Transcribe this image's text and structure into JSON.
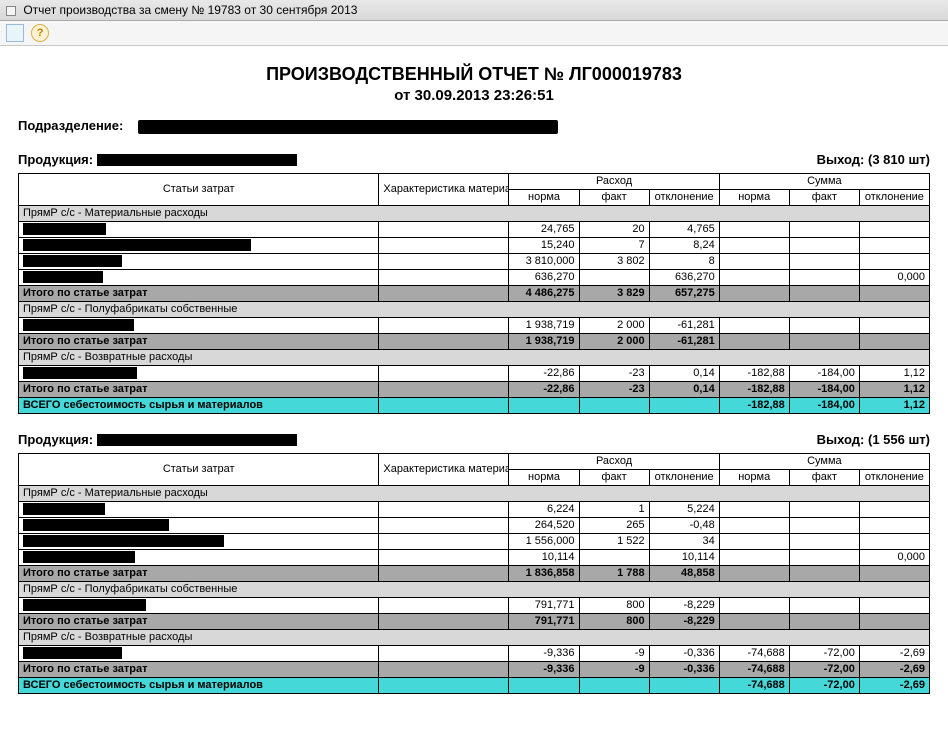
{
  "window": {
    "title": "Отчет производства за смену № 19783 от 30 сентября 2013"
  },
  "report": {
    "title": "ПРОИЗВОДСТВЕННЫЙ ОТЧЕТ № ЛГ000019783",
    "date_line": "от 30.09.2013 23:26:51",
    "dept_label": "Подразделение:"
  },
  "labels": {
    "product": "Продукция:",
    "output": "Выход:",
    "cost_items": "Статьи затрат",
    "material_char": "Характеристика материала",
    "consumption": "Расход",
    "sum": "Сумма",
    "norm": "норма",
    "fact": "факт",
    "deviation": "отклонение",
    "sec_material": "ПрямР с/с - Материальные расходы",
    "sec_semi": "ПрямР с/с - Полуфабрикаты собственные",
    "sec_return": "ПрямР с/с - Возвратные расходы",
    "subtotal": "Итого по статье затрат",
    "grand": "ВСЕГО себестоимость сырья и материалов"
  },
  "blocks": [
    {
      "output": "(3 810 шт)",
      "sections": [
        {
          "key": "sec_material",
          "rows": [
            {
              "cn": "24,765",
              "cf": "20",
              "cd": "4,765",
              "sn": "",
              "sf": "",
              "sd": ""
            },
            {
              "cn": "15,240",
              "cf": "7",
              "cd": "8,24",
              "sn": "",
              "sf": "",
              "sd": ""
            },
            {
              "cn": "3 810,000",
              "cf": "3 802",
              "cd": "8",
              "sn": "",
              "sf": "",
              "sd": ""
            },
            {
              "cn": "636,270",
              "cf": "",
              "cd": "636,270",
              "sn": "",
              "sf": "",
              "sd": "0,000"
            }
          ],
          "subtotal": {
            "cn": "4 486,275",
            "cf": "3 829",
            "cd": "657,275",
            "sn": "",
            "sf": "",
            "sd": ""
          }
        },
        {
          "key": "sec_semi",
          "rows": [
            {
              "cn": "1 938,719",
              "cf": "2 000",
              "cd": "-61,281",
              "sn": "",
              "sf": "",
              "sd": ""
            }
          ],
          "subtotal": {
            "cn": "1 938,719",
            "cf": "2 000",
            "cd": "-61,281",
            "sn": "",
            "sf": "",
            "sd": ""
          }
        },
        {
          "key": "sec_return",
          "rows": [
            {
              "cn": "-22,86",
              "cf": "-23",
              "cd": "0,14",
              "sn": "-182,88",
              "sf": "-184,00",
              "sd": "1,12"
            }
          ],
          "subtotal": {
            "cn": "-22,86",
            "cf": "-23",
            "cd": "0,14",
            "sn": "-182,88",
            "sf": "-184,00",
            "sd": "1,12"
          }
        }
      ],
      "grand": {
        "cn": "",
        "cf": "",
        "cd": "",
        "sn": "-182,88",
        "sf": "-184,00",
        "sd": "1,12"
      }
    },
    {
      "output": "(1 556 шт)",
      "sections": [
        {
          "key": "sec_material",
          "rows": [
            {
              "cn": "6,224",
              "cf": "1",
              "cd": "5,224",
              "sn": "",
              "sf": "",
              "sd": ""
            },
            {
              "cn": "264,520",
              "cf": "265",
              "cd": "-0,48",
              "sn": "",
              "sf": "",
              "sd": ""
            },
            {
              "cn": "1 556,000",
              "cf": "1 522",
              "cd": "34",
              "sn": "",
              "sf": "",
              "sd": ""
            },
            {
              "cn": "10,114",
              "cf": "",
              "cd": "10,114",
              "sn": "",
              "sf": "",
              "sd": "0,000"
            }
          ],
          "subtotal": {
            "cn": "1 836,858",
            "cf": "1 788",
            "cd": "48,858",
            "sn": "",
            "sf": "",
            "sd": ""
          }
        },
        {
          "key": "sec_semi",
          "rows": [
            {
              "cn": "791,771",
              "cf": "800",
              "cd": "-8,229",
              "sn": "",
              "sf": "",
              "sd": ""
            }
          ],
          "subtotal": {
            "cn": "791,771",
            "cf": "800",
            "cd": "-8,229",
            "sn": "",
            "sf": "",
            "sd": ""
          }
        },
        {
          "key": "sec_return",
          "rows": [
            {
              "cn": "-9,336",
              "cf": "-9",
              "cd": "-0,336",
              "sn": "-74,688",
              "sf": "-72,00",
              "sd": "-2,69"
            }
          ],
          "subtotal": {
            "cn": "-9,336",
            "cf": "-9",
            "cd": "-0,336",
            "sn": "-74,688",
            "sf": "-72,00",
            "sd": "-2,69"
          }
        }
      ],
      "grand": {
        "cn": "",
        "cf": "",
        "cd": "",
        "sn": "-74,688",
        "sf": "-72,00",
        "sd": "-2,69"
      }
    }
  ]
}
